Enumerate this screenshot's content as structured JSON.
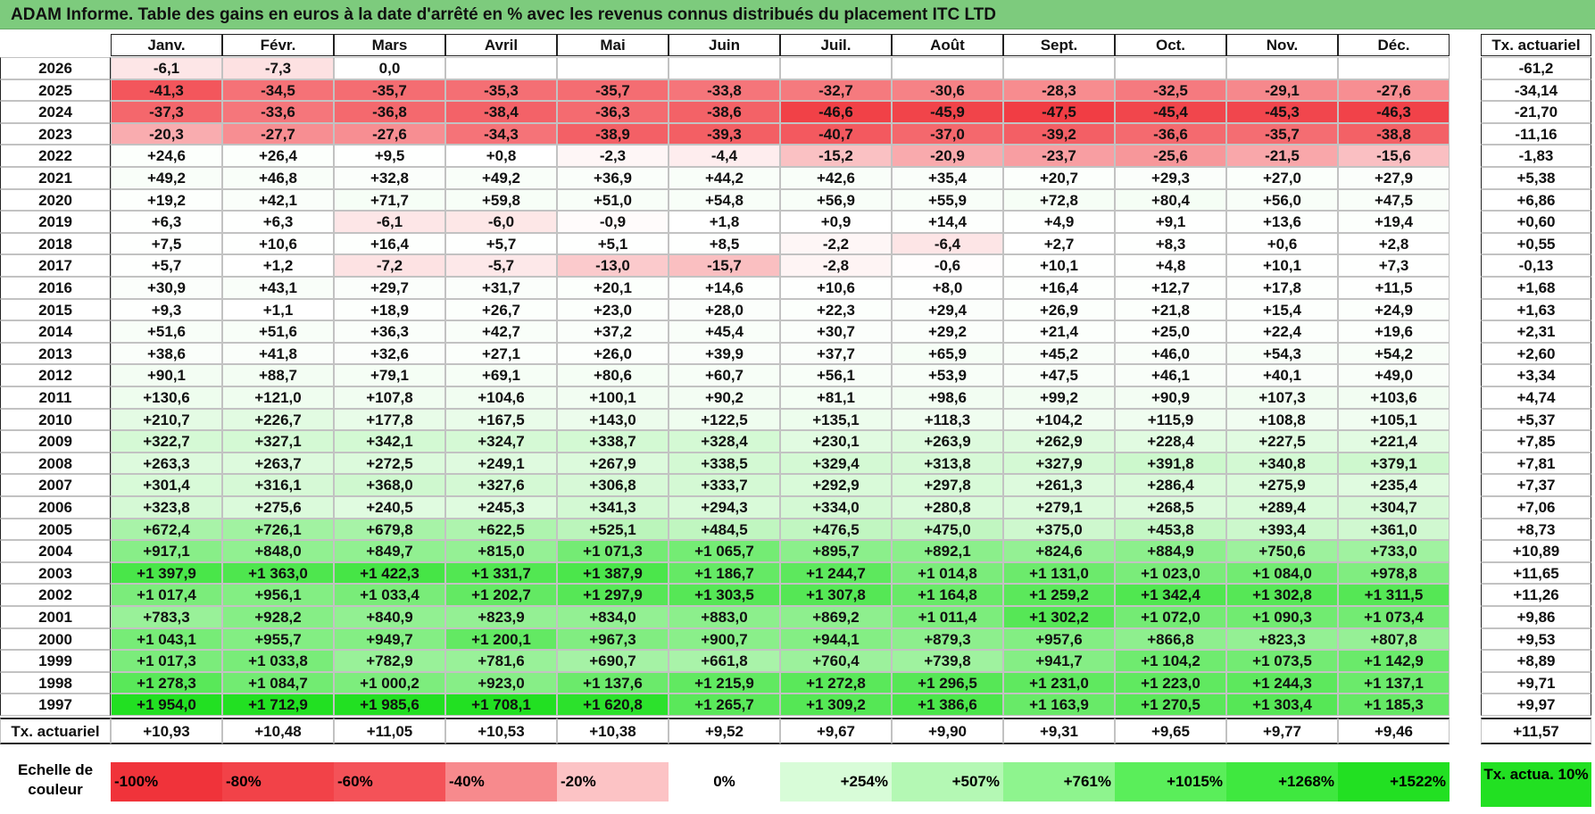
{
  "title": "ADAM Informe. Table des gains en euros à la date d'arrêté en % avec les revenus connus distribués du placement ITC LTD",
  "months": [
    "Janv.",
    "Févr.",
    "Mars",
    "Avril",
    "Mai",
    "Juin",
    "Juil.",
    "Août",
    "Sept.",
    "Oct.",
    "Nov.",
    "Déc."
  ],
  "rate_header": "Tx. actuariel",
  "rows": [
    {
      "year": "2026",
      "cells": [
        "-6,1",
        "-7,3",
        "0,0",
        "",
        "",
        "",
        "",
        "",
        "",
        "",
        "",
        ""
      ],
      "rate": "-61,2"
    },
    {
      "year": "2025",
      "cells": [
        "-41,3",
        "-34,5",
        "-35,7",
        "-35,3",
        "-35,7",
        "-33,8",
        "-32,7",
        "-30,6",
        "-28,3",
        "-32,5",
        "-29,1",
        "-27,6"
      ],
      "rate": "-34,14"
    },
    {
      "year": "2024",
      "cells": [
        "-37,3",
        "-33,6",
        "-36,8",
        "-38,4",
        "-36,3",
        "-38,6",
        "-46,6",
        "-45,9",
        "-47,5",
        "-45,4",
        "-45,3",
        "-46,3"
      ],
      "rate": "-21,70"
    },
    {
      "year": "2023",
      "cells": [
        "-20,3",
        "-27,7",
        "-27,6",
        "-34,3",
        "-38,9",
        "-39,3",
        "-40,7",
        "-37,0",
        "-39,2",
        "-36,6",
        "-35,7",
        "-38,8"
      ],
      "rate": "-11,16"
    },
    {
      "year": "2022",
      "cells": [
        "+24,6",
        "+26,4",
        "+9,5",
        "+0,8",
        "-2,3",
        "-4,4",
        "-15,2",
        "-20,9",
        "-23,7",
        "-25,6",
        "-21,5",
        "-15,6"
      ],
      "rate": "-1,83"
    },
    {
      "year": "2021",
      "cells": [
        "+49,2",
        "+46,8",
        "+32,8",
        "+49,2",
        "+36,9",
        "+44,2",
        "+42,6",
        "+35,4",
        "+20,7",
        "+29,3",
        "+27,0",
        "+27,9"
      ],
      "rate": "+5,38"
    },
    {
      "year": "2020",
      "cells": [
        "+19,2",
        "+42,1",
        "+71,7",
        "+59,8",
        "+51,0",
        "+54,8",
        "+56,9",
        "+55,9",
        "+72,8",
        "+80,4",
        "+56,0",
        "+47,5"
      ],
      "rate": "+6,86"
    },
    {
      "year": "2019",
      "cells": [
        "+6,3",
        "+6,3",
        "-6,1",
        "-6,0",
        "-0,9",
        "+1,8",
        "+0,9",
        "+14,4",
        "+4,9",
        "+9,1",
        "+13,6",
        "+19,4"
      ],
      "rate": "+0,60"
    },
    {
      "year": "2018",
      "cells": [
        "+7,5",
        "+10,6",
        "+16,4",
        "+5,7",
        "+5,1",
        "+8,5",
        "-2,2",
        "-6,4",
        "+2,7",
        "+8,3",
        "+0,6",
        "+2,8"
      ],
      "rate": "+0,55"
    },
    {
      "year": "2017",
      "cells": [
        "+5,7",
        "+1,2",
        "-7,2",
        "-5,7",
        "-13,0",
        "-15,7",
        "-2,8",
        "-0,6",
        "+10,1",
        "+4,8",
        "+10,1",
        "+7,3"
      ],
      "rate": "-0,13"
    },
    {
      "year": "2016",
      "cells": [
        "+30,9",
        "+43,1",
        "+29,7",
        "+31,7",
        "+20,1",
        "+14,6",
        "+10,6",
        "+8,0",
        "+16,4",
        "+12,7",
        "+17,8",
        "+11,5"
      ],
      "rate": "+1,68"
    },
    {
      "year": "2015",
      "cells": [
        "+9,3",
        "+1,1",
        "+18,9",
        "+26,7",
        "+23,0",
        "+28,0",
        "+22,3",
        "+29,4",
        "+26,9",
        "+21,8",
        "+15,4",
        "+24,9"
      ],
      "rate": "+1,63"
    },
    {
      "year": "2014",
      "cells": [
        "+51,6",
        "+51,6",
        "+36,3",
        "+42,7",
        "+37,2",
        "+45,4",
        "+30,7",
        "+29,2",
        "+21,4",
        "+25,0",
        "+22,4",
        "+19,6"
      ],
      "rate": "+2,31"
    },
    {
      "year": "2013",
      "cells": [
        "+38,6",
        "+41,8",
        "+32,6",
        "+27,1",
        "+26,0",
        "+39,9",
        "+37,7",
        "+65,9",
        "+45,2",
        "+46,0",
        "+54,3",
        "+54,2"
      ],
      "rate": "+2,60"
    },
    {
      "year": "2012",
      "cells": [
        "+90,1",
        "+88,7",
        "+79,1",
        "+69,1",
        "+80,6",
        "+60,7",
        "+56,1",
        "+53,9",
        "+47,5",
        "+46,1",
        "+40,1",
        "+49,0"
      ],
      "rate": "+3,34"
    },
    {
      "year": "2011",
      "cells": [
        "+130,6",
        "+121,0",
        "+107,8",
        "+104,6",
        "+100,1",
        "+90,2",
        "+81,1",
        "+98,6",
        "+99,2",
        "+90,9",
        "+107,3",
        "+103,6"
      ],
      "rate": "+4,74"
    },
    {
      "year": "2010",
      "cells": [
        "+210,7",
        "+226,7",
        "+177,8",
        "+167,5",
        "+143,0",
        "+122,5",
        "+135,1",
        "+118,3",
        "+104,2",
        "+115,9",
        "+108,8",
        "+105,1"
      ],
      "rate": "+5,37"
    },
    {
      "year": "2009",
      "cells": [
        "+322,7",
        "+327,1",
        "+342,1",
        "+324,7",
        "+338,7",
        "+328,4",
        "+230,1",
        "+263,9",
        "+262,9",
        "+228,4",
        "+227,5",
        "+221,4"
      ],
      "rate": "+7,85"
    },
    {
      "year": "2008",
      "cells": [
        "+263,3",
        "+263,7",
        "+272,5",
        "+249,1",
        "+267,9",
        "+338,5",
        "+329,4",
        "+313,8",
        "+327,9",
        "+391,8",
        "+340,8",
        "+379,1"
      ],
      "rate": "+7,81"
    },
    {
      "year": "2007",
      "cells": [
        "+301,4",
        "+316,1",
        "+368,0",
        "+327,6",
        "+306,8",
        "+333,7",
        "+292,9",
        "+297,8",
        "+261,3",
        "+286,4",
        "+275,9",
        "+235,4"
      ],
      "rate": "+7,37"
    },
    {
      "year": "2006",
      "cells": [
        "+323,8",
        "+275,6",
        "+240,5",
        "+245,3",
        "+341,3",
        "+294,3",
        "+334,0",
        "+280,8",
        "+279,1",
        "+268,5",
        "+289,4",
        "+304,7"
      ],
      "rate": "+7,06"
    },
    {
      "year": "2005",
      "cells": [
        "+672,4",
        "+726,1",
        "+679,8",
        "+622,5",
        "+525,1",
        "+484,5",
        "+476,5",
        "+475,0",
        "+375,0",
        "+453,8",
        "+393,4",
        "+361,0"
      ],
      "rate": "+8,73"
    },
    {
      "year": "2004",
      "cells": [
        "+917,1",
        "+848,0",
        "+849,7",
        "+815,0",
        "+1 071,3",
        "+1 065,7",
        "+895,7",
        "+892,1",
        "+824,6",
        "+884,9",
        "+750,6",
        "+733,0"
      ],
      "rate": "+10,89"
    },
    {
      "year": "2003",
      "cells": [
        "+1 397,9",
        "+1 363,0",
        "+1 422,3",
        "+1 331,7",
        "+1 387,9",
        "+1 186,7",
        "+1 244,7",
        "+1 014,8",
        "+1 131,0",
        "+1 023,0",
        "+1 084,0",
        "+978,8"
      ],
      "rate": "+11,65"
    },
    {
      "year": "2002",
      "cells": [
        "+1 017,4",
        "+956,1",
        "+1 033,4",
        "+1 202,7",
        "+1 297,9",
        "+1 303,5",
        "+1 307,8",
        "+1 164,8",
        "+1 259,2",
        "+1 342,4",
        "+1 302,8",
        "+1 311,5"
      ],
      "rate": "+11,26"
    },
    {
      "year": "2001",
      "cells": [
        "+783,3",
        "+928,2",
        "+840,9",
        "+823,9",
        "+834,0",
        "+883,0",
        "+869,2",
        "+1 011,4",
        "+1 302,2",
        "+1 072,0",
        "+1 090,3",
        "+1 073,4"
      ],
      "rate": "+9,86"
    },
    {
      "year": "2000",
      "cells": [
        "+1 043,1",
        "+955,7",
        "+949,7",
        "+1 200,1",
        "+967,3",
        "+900,7",
        "+944,1",
        "+879,3",
        "+957,6",
        "+866,8",
        "+823,3",
        "+807,8"
      ],
      "rate": "+9,53"
    },
    {
      "year": "1999",
      "cells": [
        "+1 017,3",
        "+1 033,8",
        "+782,9",
        "+781,6",
        "+690,7",
        "+661,8",
        "+760,4",
        "+739,8",
        "+941,7",
        "+1 104,2",
        "+1 073,5",
        "+1 142,9"
      ],
      "rate": "+8,89"
    },
    {
      "year": "1998",
      "cells": [
        "+1 278,3",
        "+1 084,7",
        "+1 000,2",
        "+923,0",
        "+1 137,6",
        "+1 215,9",
        "+1 272,8",
        "+1 296,5",
        "+1 231,0",
        "+1 223,0",
        "+1 244,3",
        "+1 137,1"
      ],
      "rate": "+9,71"
    },
    {
      "year": "1997",
      "cells": [
        "+1 954,0",
        "+1 712,9",
        "+1 985,6",
        "+1 708,1",
        "+1 620,8",
        "+1 265,7",
        "+1 309,2",
        "+1 386,6",
        "+1 163,9",
        "+1 270,5",
        "+1 303,4",
        "+1 185,3"
      ],
      "rate": "+9,97"
    }
  ],
  "footer": {
    "label": "Tx. actuariel",
    "values": [
      "+10,93",
      "+10,48",
      "+11,05",
      "+10,53",
      "+10,38",
      "+9,52",
      "+9,67",
      "+9,90",
      "+9,31",
      "+9,65",
      "+9,77",
      "+9,46"
    ],
    "total": "+11,57"
  },
  "legend": {
    "label": "Echelle de couleur",
    "items": [
      {
        "text": "-100%",
        "color": "#f0333a"
      },
      {
        "text": "-80%",
        "color": "#f24248"
      },
      {
        "text": "-60%",
        "color": "#f45258"
      },
      {
        "text": "-40%",
        "color": "#f78a8d"
      },
      {
        "text": "-20%",
        "color": "#fcc3c5"
      },
      {
        "text": "0%",
        "color": "#ffffff"
      },
      {
        "text": "+254%",
        "color": "#d8fcd8"
      },
      {
        "text": "+507%",
        "color": "#b4f8b4"
      },
      {
        "text": "+761%",
        "color": "#8ef48e"
      },
      {
        "text": "+1015%",
        "color": "#5aee5a"
      },
      {
        "text": "+1268%",
        "color": "#3fe83f"
      },
      {
        "text": "+1522%",
        "color": "#22e022"
      }
    ],
    "actual_label": "Tx. actua. 10%",
    "actual_color": "#22e022"
  }
}
